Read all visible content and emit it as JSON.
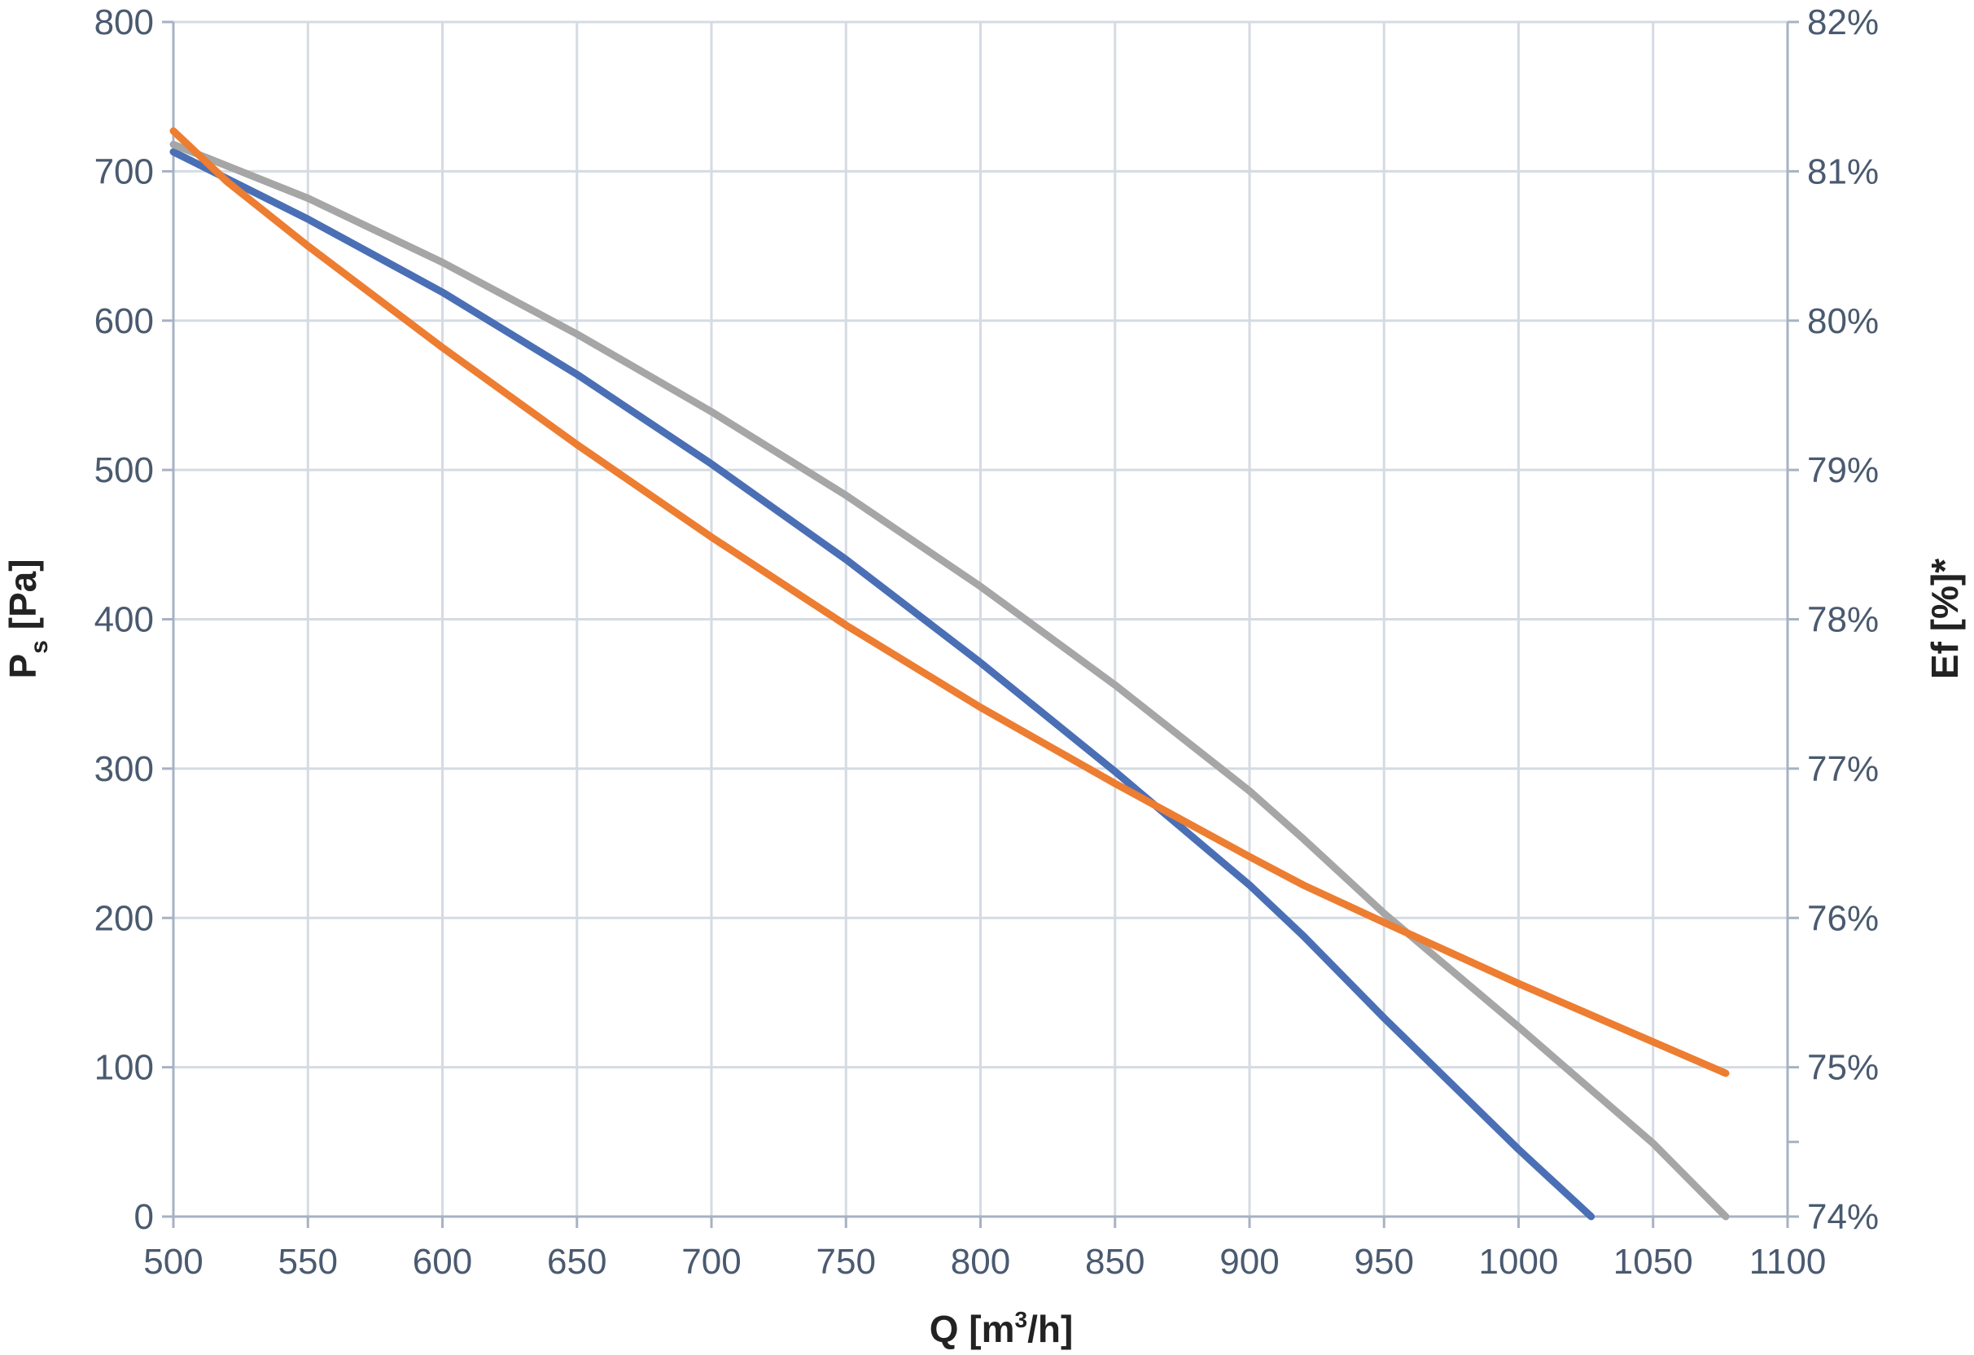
{
  "chart_data": {
    "type": "line",
    "xlabel_main": "Q [m",
    "xlabel_sup": "3",
    "xlabel_end": "/h]",
    "ylabel_main": "P",
    "ylabel_sub": "s",
    "ylabel_end": " [Pa]",
    "y2label": "Ef [%]*",
    "xlim": [
      500,
      1100
    ],
    "ylim": [
      0,
      800
    ],
    "y2lim": [
      74,
      82
    ],
    "x_ticks": [
      "500",
      "550",
      "600",
      "650",
      "700",
      "750",
      "800",
      "850",
      "900",
      "950",
      "1000",
      "1050",
      "1100"
    ],
    "y_ticks": [
      "0",
      "100",
      "200",
      "300",
      "400",
      "500",
      "600",
      "700",
      "800"
    ],
    "y2_ticks": [
      "74%",
      "75%",
      "76%",
      "77%",
      "78%",
      "79%",
      "80%",
      "81%",
      "82%"
    ],
    "grid": true,
    "series": [
      {
        "color": "#4a6fb5",
        "axis": "left",
        "points": [
          [
            500,
            713
          ],
          [
            550,
            668
          ],
          [
            600,
            619
          ],
          [
            650,
            564
          ],
          [
            700,
            504
          ],
          [
            750,
            440
          ],
          [
            800,
            371
          ],
          [
            850,
            298
          ],
          [
            900,
            222
          ],
          [
            920,
            188
          ],
          [
            950,
            133
          ],
          [
            1000,
            45
          ],
          [
            1027,
            0
          ]
        ]
      },
      {
        "color": "#a6a6a6",
        "axis": "left",
        "points": [
          [
            500,
            718
          ],
          [
            550,
            682
          ],
          [
            600,
            639
          ],
          [
            650,
            591
          ],
          [
            700,
            539
          ],
          [
            750,
            483
          ],
          [
            800,
            422
          ],
          [
            850,
            356
          ],
          [
            900,
            285
          ],
          [
            920,
            253
          ],
          [
            950,
            203
          ],
          [
            1000,
            127
          ],
          [
            1050,
            49
          ],
          [
            1077,
            0
          ]
        ]
      },
      {
        "color": "#ed7d31",
        "axis": "right",
        "points": [
          [
            500,
            81.27
          ],
          [
            520,
            80.93
          ],
          [
            550,
            80.5
          ],
          [
            600,
            79.82
          ],
          [
            650,
            79.17
          ],
          [
            700,
            78.55
          ],
          [
            750,
            77.96
          ],
          [
            800,
            77.41
          ],
          [
            850,
            76.9
          ],
          [
            900,
            76.41
          ],
          [
            920,
            76.22
          ],
          [
            950,
            75.97
          ],
          [
            1000,
            75.56
          ],
          [
            1050,
            75.17
          ],
          [
            1077,
            74.96
          ]
        ]
      }
    ]
  }
}
